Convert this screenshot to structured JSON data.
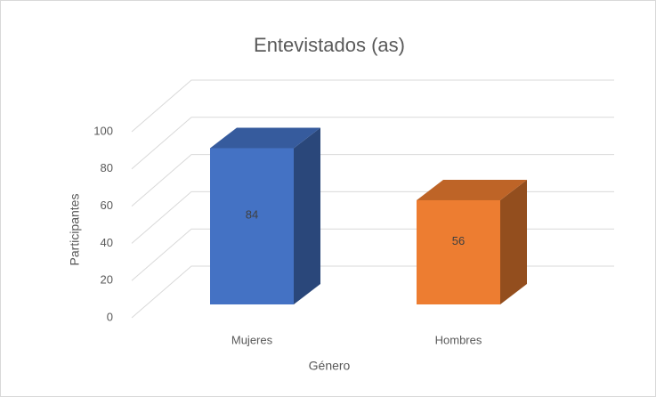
{
  "chart_data": {
    "type": "bar3d",
    "title": "Entevistados (as)",
    "categories": [
      "Mujeres",
      "Hombres"
    ],
    "values": [
      84,
      56
    ],
    "colors": [
      "#4472c4",
      "#ed7d31"
    ],
    "xlabel": "Género",
    "ylabel": "Participantes",
    "ylim": [
      0,
      100
    ],
    "yticks": [
      0,
      20,
      40,
      60,
      80,
      100
    ],
    "grid": true
  }
}
